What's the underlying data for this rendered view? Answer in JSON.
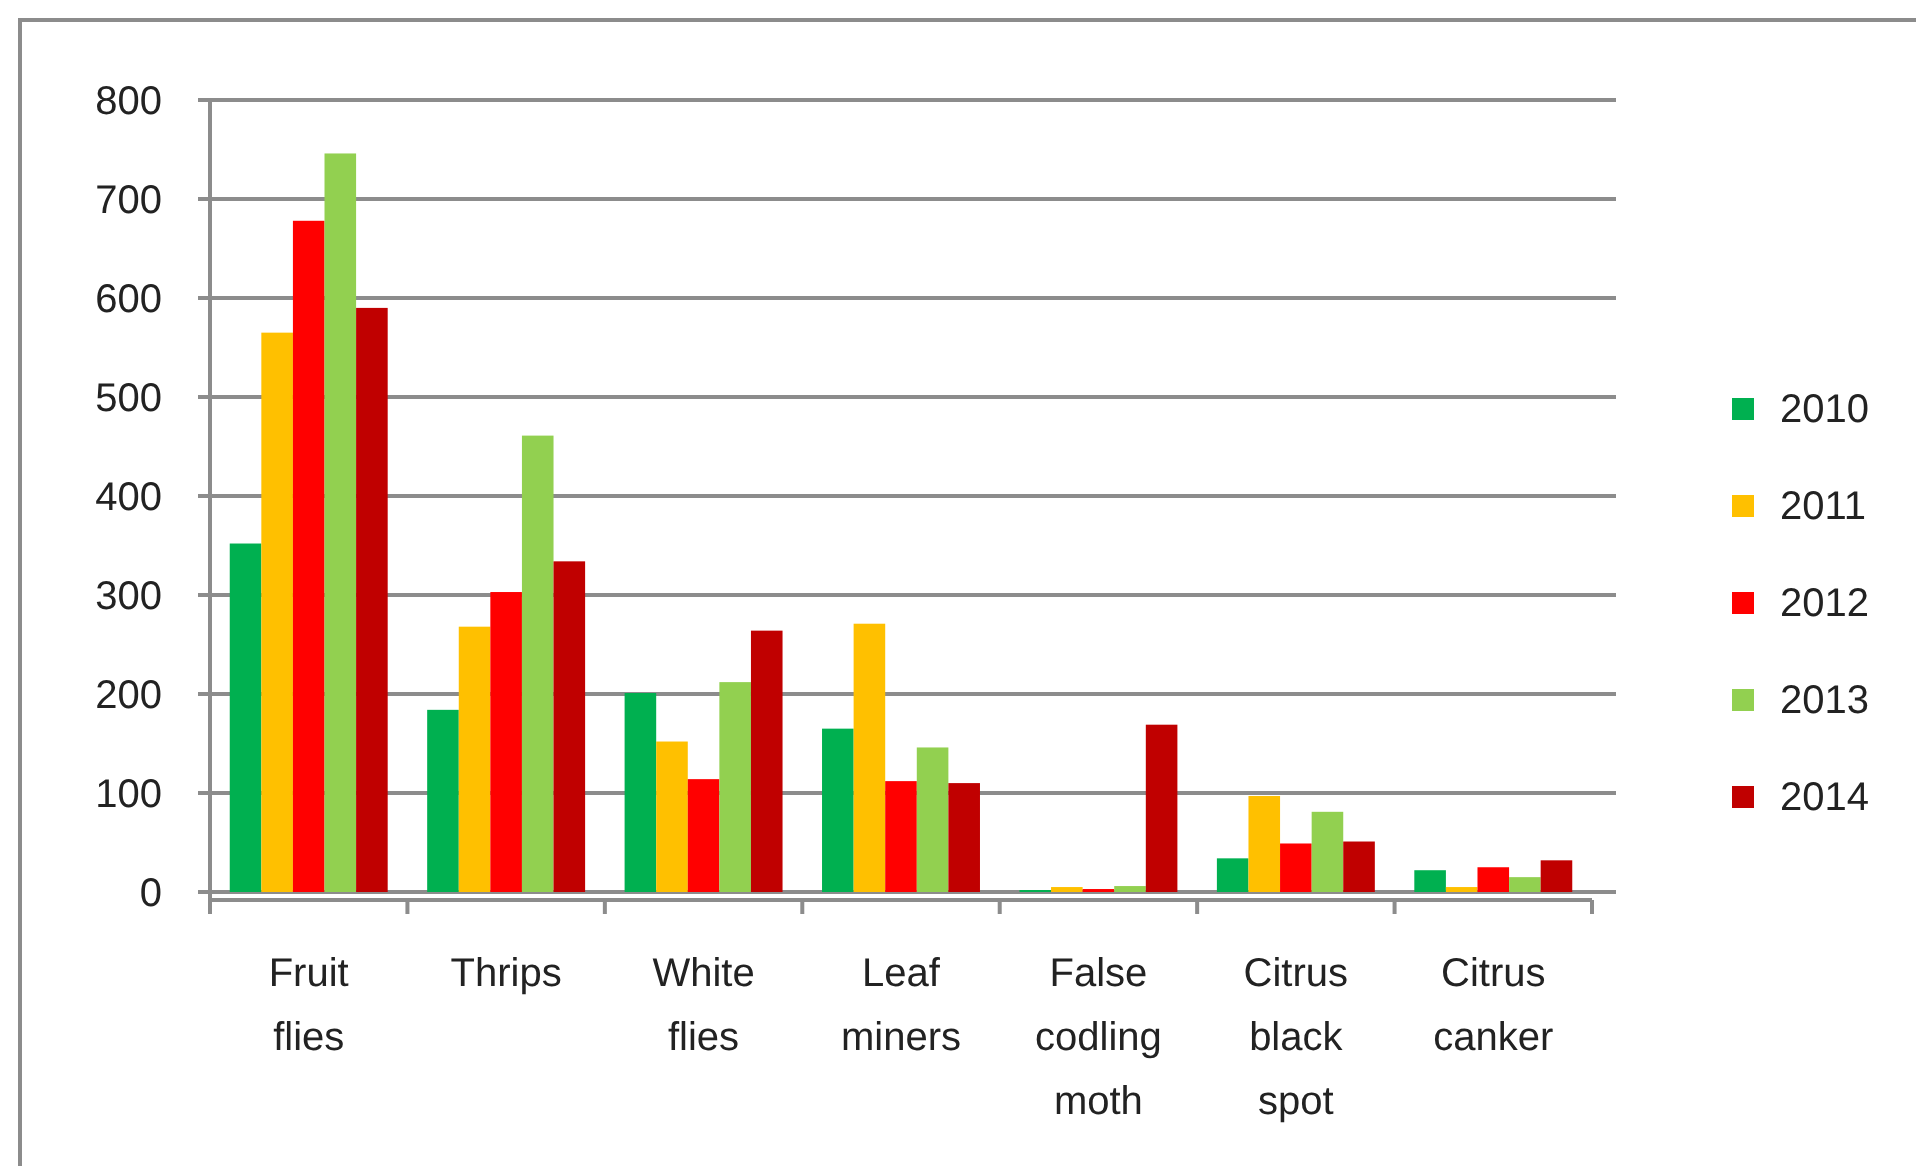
{
  "chart_data": {
    "type": "bar",
    "categories": [
      "Fruit flies",
      "Thrips",
      "White flies",
      "Leaf miners",
      "False codling moth",
      "Citrus black spot",
      "Citrus canker"
    ],
    "series": [
      {
        "name": "2010",
        "color": "#00b050",
        "values": [
          352,
          184,
          201,
          165,
          2,
          34,
          22
        ]
      },
      {
        "name": "2011",
        "color": "#ffc000",
        "values": [
          565,
          268,
          152,
          271,
          5,
          97,
          5
        ]
      },
      {
        "name": "2012",
        "color": "#ff0000",
        "values": [
          678,
          303,
          114,
          112,
          3,
          49,
          25
        ]
      },
      {
        "name": "2013",
        "color": "#92d050",
        "values": [
          746,
          461,
          212,
          146,
          6,
          81,
          15
        ]
      },
      {
        "name": "2014",
        "color": "#c00000",
        "values": [
          590,
          334,
          264,
          110,
          169,
          51,
          32
        ]
      }
    ],
    "ylim": [
      0,
      800
    ],
    "yticks": [
      0,
      100,
      200,
      300,
      400,
      500,
      600,
      700,
      800
    ],
    "grid": "y",
    "legend": "right"
  }
}
